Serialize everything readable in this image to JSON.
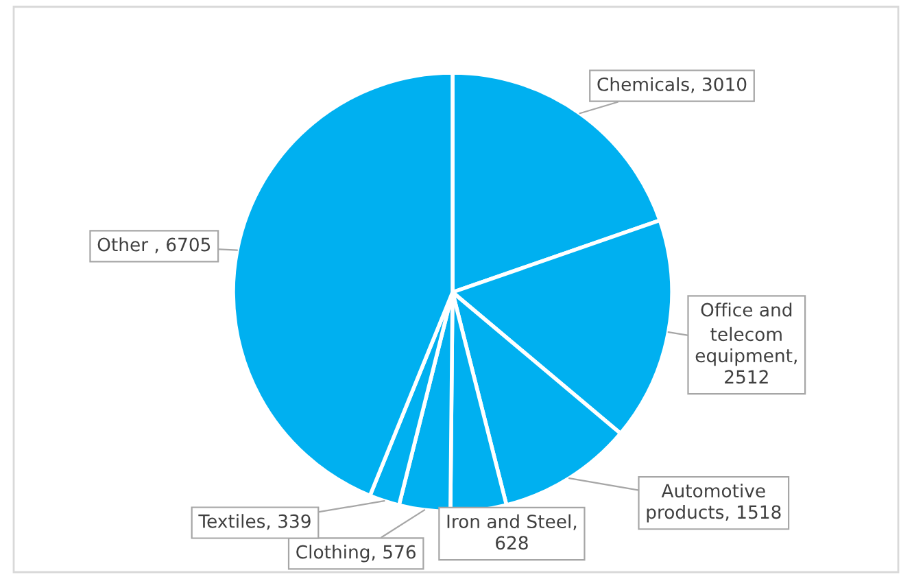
{
  "chart_data": {
    "type": "pie",
    "categories": [
      "Chemicals",
      "Office and telecom equipment",
      "Automotive products",
      "Iron and Steel",
      "Clothing",
      "Textiles",
      "Other"
    ],
    "values": [
      3010,
      2512,
      1518,
      628,
      576,
      339,
      6705
    ],
    "colors": [
      "#00b0f0",
      "#00b0f0",
      "#00b0f0",
      "#00b0f0",
      "#00b0f0",
      "#00b0f0",
      "#00b0f0"
    ],
    "value_labels": [
      ", 3010",
      ", 2512",
      ", 1518",
      ", 628",
      ", 576",
      ", 339",
      " , 6705"
    ],
    "legend": false
  }
}
